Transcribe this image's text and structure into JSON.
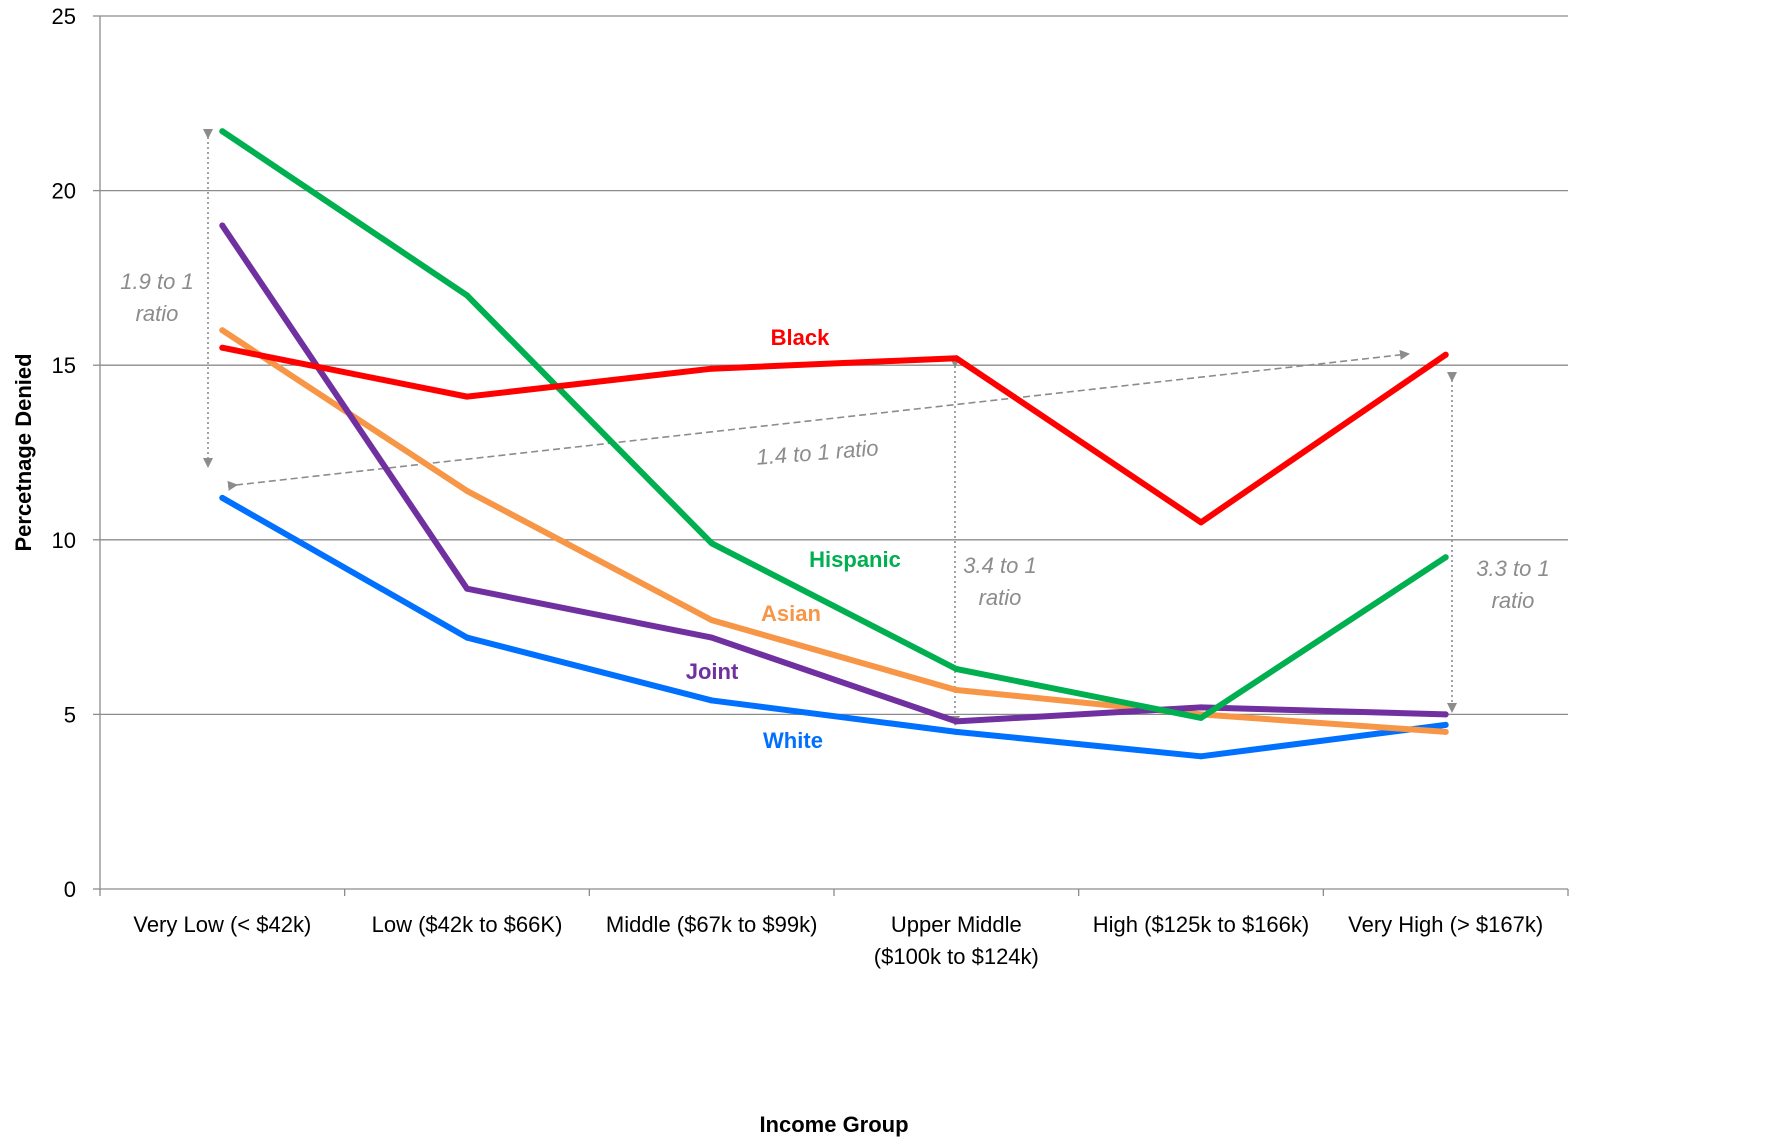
{
  "chart_data": {
    "type": "line",
    "xlabel": "Income Group",
    "ylabel": "Percetnage Denied",
    "ylim": [
      0,
      25
    ],
    "yticks": [
      0,
      5,
      10,
      15,
      20,
      25
    ],
    "grid": "horizontal",
    "categories": [
      [
        "Very Low  (< $42k)"
      ],
      [
        "Low ($42k to $66K)"
      ],
      [
        "Middle ($67k to $99k)"
      ],
      [
        "Upper Middle",
        "($100k to $124k)"
      ],
      [
        "High ($125k to $166k)"
      ],
      [
        "Very High (> $167k)"
      ]
    ],
    "series": [
      {
        "name": "Black",
        "color": "#ff0000",
        "values": [
          15.5,
          14.1,
          14.9,
          15.2,
          10.5,
          15.3
        ]
      },
      {
        "name": "Hispanic",
        "color": "#00b050",
        "values": [
          21.7,
          17.0,
          9.9,
          6.3,
          4.9,
          9.5
        ]
      },
      {
        "name": "Asian",
        "color": "#f79646",
        "values": [
          16.0,
          11.4,
          7.7,
          5.7,
          5.0,
          4.5
        ]
      },
      {
        "name": "Joint",
        "color": "#7030a0",
        "values": [
          19.0,
          8.6,
          7.2,
          4.8,
          5.2,
          5.0
        ]
      },
      {
        "name": "White",
        "color": "#0070ff",
        "values": [
          11.2,
          7.2,
          5.4,
          4.5,
          3.8,
          4.7
        ]
      }
    ],
    "annotations": [
      {
        "lines": [
          "1.9  to 1",
          "ratio"
        ]
      },
      {
        "lines": [
          "1.4 to 1 ratio"
        ]
      },
      {
        "lines": [
          "3.4 to 1",
          "ratio"
        ]
      },
      {
        "lines": [
          "3.3 to 1",
          "ratio"
        ]
      }
    ]
  }
}
